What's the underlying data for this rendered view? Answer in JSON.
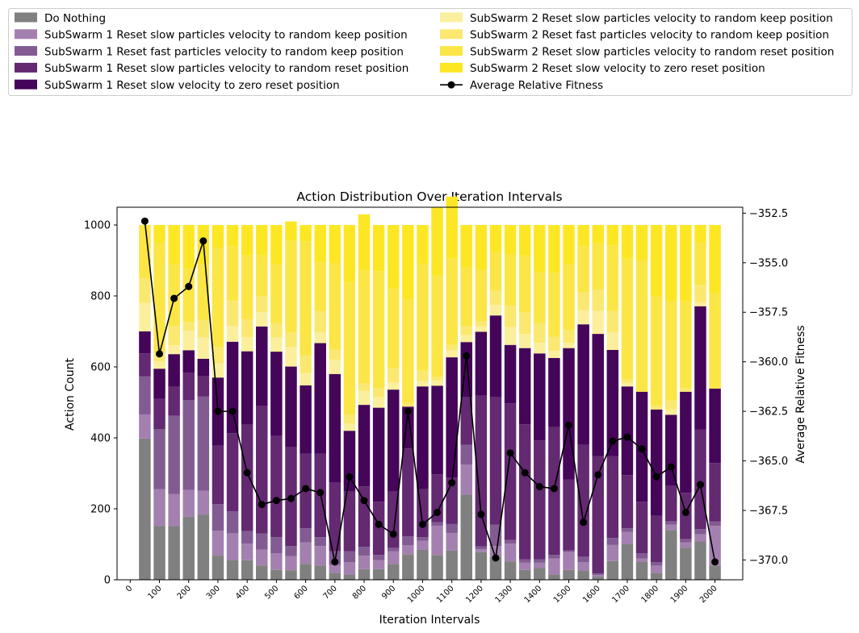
{
  "chart_data": {
    "type": "bar",
    "stacked": true,
    "title": "Action Distribution Over Iteration Intervals",
    "xlabel": "Iteration Intervals",
    "ylabel": "Action Count",
    "y2label": "Average Relative Fitness",
    "ylim": [
      0,
      1050
    ],
    "y2lim": [
      -371.0,
      -352.2
    ],
    "yticks": [
      0,
      200,
      400,
      600,
      800,
      1000
    ],
    "y2ticks": [
      -370.0,
      -367.5,
      -365.0,
      -362.5,
      -360.0,
      -357.5,
      -355.0,
      -352.5
    ],
    "y2tick_labels": [
      "−370.0",
      "−367.5",
      "−365.0",
      "−362.5",
      "−360.0",
      "−357.5",
      "−355.0",
      "−352.5"
    ],
    "xticks": [
      0,
      100,
      200,
      300,
      400,
      500,
      600,
      700,
      800,
      900,
      1000,
      1100,
      1200,
      1300,
      1400,
      1500,
      1600,
      1700,
      1800,
      1900,
      2000
    ],
    "legend_placement": "top",
    "grid": false,
    "x": [
      50,
      100,
      150,
      200,
      250,
      300,
      350,
      400,
      450,
      500,
      550,
      600,
      650,
      700,
      750,
      800,
      850,
      900,
      950,
      1000,
      1050,
      1100,
      1150,
      1200,
      1250,
      1300,
      1350,
      1400,
      1450,
      1500,
      1550,
      1600,
      1650,
      1700,
      1750,
      1800,
      1850,
      1900,
      1950,
      2000
    ],
    "series": [
      {
        "name": "Do Nothing",
        "color": "#808080",
        "values": [
          398,
          152,
          152,
          178,
          183,
          68,
          56,
          55,
          40,
          28,
          27,
          45,
          40,
          20,
          15,
          30,
          30,
          45,
          72,
          85,
          70,
          82,
          240,
          78,
          65,
          52,
          28,
          33,
          15,
          28,
          25,
          8,
          53,
          100,
          50,
          20,
          140,
          90,
          108,
          40
        ]
      },
      {
        "name": "SubSwarm 1 Reset slow particles velocity to random keep position",
        "color": "#a480b0",
        "values": [
          68,
          103,
          90,
          75,
          68,
          70,
          75,
          47,
          45,
          47,
          40,
          60,
          55,
          22,
          35,
          38,
          25,
          35,
          25,
          25,
          82,
          50,
          85,
          8,
          30,
          50,
          20,
          15,
          45,
          50,
          25,
          5,
          45,
          35,
          10,
          20,
          15,
          15,
          20,
          112
        ]
      },
      {
        "name": "SubSwarm 1 Reset fast particles velocity to random keep position",
        "color": "#835b93",
        "values": [
          107,
          170,
          220,
          253,
          266,
          75,
          62,
          35,
          45,
          45,
          28,
          40,
          25,
          38,
          30,
          25,
          15,
          10,
          25,
          10,
          10,
          25,
          55,
          8,
          60,
          10,
          10,
          10,
          10,
          5,
          15,
          5,
          20,
          10,
          15,
          10,
          10,
          10,
          15,
          12
        ]
      },
      {
        "name": "SubSwarm 1 Reset slow particles velocity to random reset position",
        "color": "#632971",
        "values": [
          65,
          85,
          82,
          78,
          58,
          165,
          220,
          300,
          360,
          285,
          280,
          210,
          235,
          195,
          170,
          170,
          150,
          160,
          248,
          135,
          135,
          130,
          135,
          425,
          360,
          385,
          380,
          335,
          360,
          200,
          315,
          330,
          230,
          150,
          145,
          130,
          100,
          130,
          280,
          165
        ]
      },
      {
        "name": "SubSwarm 1 Reset slow velocity to zero reset position",
        "color": "#450559",
        "values": [
          62,
          85,
          92,
          63,
          48,
          192,
          258,
          207,
          224,
          238,
          226,
          193,
          312,
          305,
          170,
          230,
          265,
          286,
          118,
          290,
          250,
          340,
          155,
          180,
          230,
          165,
          215,
          245,
          195,
          370,
          340,
          345,
          300,
          250,
          310,
          300,
          200,
          285,
          348,
          210
        ]
      },
      {
        "name": "SubSwarm 2 Reset slow particles velocity to random keep position",
        "color": "#fbef9d",
        "values": [
          80,
          20,
          25,
          55,
          60,
          40,
          45,
          40,
          40,
          40,
          55,
          35,
          30,
          40,
          20,
          40,
          30,
          20,
          0,
          15,
          15,
          20,
          20,
          15,
          30,
          50,
          40,
          30,
          20,
          15,
          40,
          65,
          50,
          10,
          0,
          0,
          15,
          0,
          10,
          0
        ]
      },
      {
        "name": "SubSwarm 2 Reset fast particles velocity to random keep position",
        "color": "#fbe870",
        "values": [
          70,
          25,
          55,
          25,
          50,
          45,
          70,
          50,
          45,
          40,
          40,
          50,
          60,
          30,
          25,
          20,
          25,
          40,
          10,
          30,
          10,
          15,
          25,
          15,
          40,
          60,
          60,
          55,
          40,
          35,
          50,
          60,
          60,
          10,
          0,
          10,
          25,
          10,
          50,
          0
        ]
      },
      {
        "name": "SubSwarm 2 Reset slow particles velocity to random reset position",
        "color": "#fbe646",
        "values": [
          150,
          310,
          174,
          150,
          157,
          280,
          154,
          180,
          115,
          167,
          259,
          320,
          138,
          242,
          375,
          320,
          330,
          224,
          292,
          300,
          285,
          244,
          165,
          145,
          110,
          145,
          160,
          145,
          180,
          185,
          130,
          130,
          185,
          340,
          370,
          310,
          280,
          245,
          120,
          270
        ]
      },
      {
        "name": "SubSwarm 2 Reset slow velocity to zero reset position",
        "color": "#fde725",
        "values": [
          0,
          50,
          110,
          123,
          110,
          65,
          60,
          86,
          86,
          110,
          55,
          47,
          105,
          108,
          160,
          157,
          130,
          180,
          210,
          110,
          193,
          174,
          120,
          126,
          75,
          83,
          87,
          132,
          135,
          112,
          60,
          52,
          57,
          95,
          100,
          200,
          215,
          215,
          49,
          191
        ]
      }
    ],
    "line": {
      "name": "Average Relative Fitness",
      "color": "#000000",
      "values": [
        -352.9,
        -359.6,
        -356.8,
        -356.2,
        -353.9,
        -362.5,
        -362.5,
        -365.6,
        -367.2,
        -367.0,
        -366.9,
        -366.4,
        -366.6,
        -370.1,
        -365.8,
        -367.0,
        -368.2,
        -368.7,
        -362.5,
        -368.2,
        -367.6,
        -366.1,
        -359.7,
        -367.7,
        -369.9,
        -364.6,
        -365.6,
        -366.3,
        -366.4,
        -363.2,
        -368.1,
        -365.7,
        -364.0,
        -363.8,
        -364.4,
        -365.8,
        -365.3,
        -367.6,
        -366.2,
        -370.1
      ]
    }
  }
}
